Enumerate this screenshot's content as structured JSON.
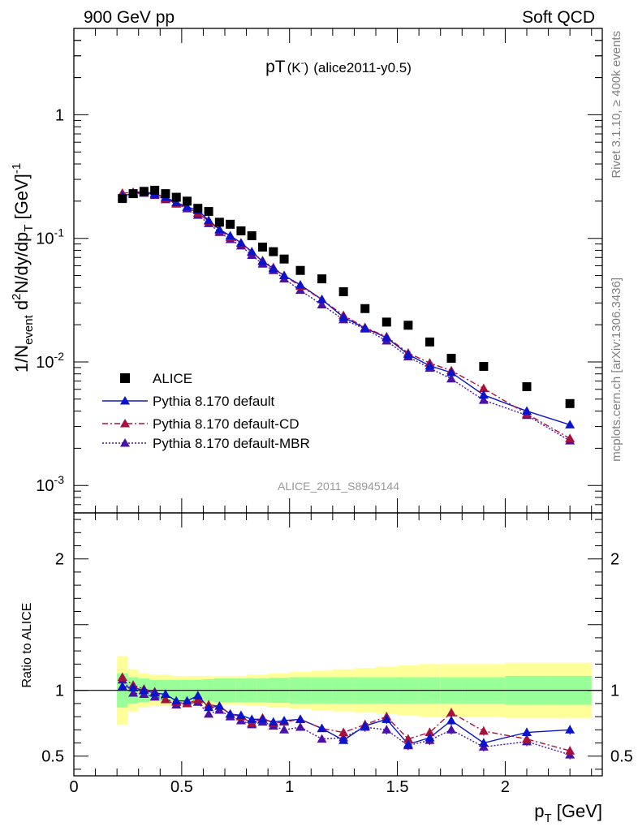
{
  "header": {
    "left": "900 GeV pp",
    "right": "Soft QCD"
  },
  "side_labels": {
    "top": "Rivet 3.1.10, ≥ 400k events",
    "bottom": "mcplots.cern.ch [arXiv:1306.3436]"
  },
  "watermark": "ALICE_2011_S8945144",
  "colors": {
    "data": "#000000",
    "default": "#0a14cc",
    "cd": "#a8103c",
    "mbr": "#4a10a8",
    "band_inner": "#99ff99",
    "band_outer": "#ffff99"
  },
  "chart_data": [
    {
      "type": "scatter",
      "title_main": "pT",
      "title_particle": "(K",
      "title_sup": "-",
      "title_close": ")",
      "title_ref": "(alice2011-y0.5)",
      "ylabel": {
        "a": "1/N",
        "sub1": "event",
        "b": " d",
        "sup1": "2",
        "c": "N/dy/dp",
        "sub2": "T",
        "d": " [GeV]",
        "sup2": "-1"
      },
      "yscale": "log",
      "ylim": [
        0.0006,
        5
      ],
      "xlim": [
        0,
        2.45
      ],
      "yticks": [
        {
          "value": 1,
          "label": "1",
          "sup": ""
        },
        {
          "value": 0.1,
          "label": "10",
          "sup": "-1"
        },
        {
          "value": 0.01,
          "label": "10",
          "sup": "-2"
        },
        {
          "value": 0.001,
          "label": "10",
          "sup": "-3"
        }
      ],
      "legend": {
        "placement": "bottom-left",
        "entries": [
          "ALICE",
          "Pythia 8.170 default",
          "Pythia 8.170 default-CD",
          "Pythia 8.170 default-MBR"
        ]
      },
      "x": [
        0.225,
        0.275,
        0.325,
        0.375,
        0.425,
        0.475,
        0.525,
        0.575,
        0.625,
        0.675,
        0.725,
        0.775,
        0.825,
        0.875,
        0.925,
        0.975,
        1.05,
        1.15,
        1.25,
        1.35,
        1.45,
        1.55,
        1.65,
        1.75,
        1.9,
        2.1,
        2.3
      ],
      "series": [
        {
          "name": "ALICE",
          "values": [
            0.21,
            0.23,
            0.24,
            0.245,
            0.23,
            0.215,
            0.2,
            0.175,
            0.165,
            0.135,
            0.13,
            0.115,
            0.105,
            0.085,
            0.078,
            0.068,
            0.055,
            0.047,
            0.037,
            0.027,
            0.021,
            0.0198,
            0.0145,
            0.0107,
            0.0092,
            0.0063,
            0.0046
          ]
        },
        {
          "name": "Pythia 8.170 default",
          "values": [
            0.22,
            0.232,
            0.235,
            0.228,
            0.215,
            0.195,
            0.18,
            0.168,
            0.14,
            0.118,
            0.105,
            0.092,
            0.078,
            0.065,
            0.057,
            0.05,
            0.042,
            0.032,
            0.023,
            0.0188,
            0.0157,
            0.0115,
            0.0093,
            0.0082,
            0.0054,
            0.004,
            0.0031
          ]
        },
        {
          "name": "Pythia 8.170 default-CD",
          "values": [
            0.232,
            0.236,
            0.238,
            0.232,
            0.21,
            0.192,
            0.178,
            0.16,
            0.138,
            0.116,
            0.102,
            0.091,
            0.077,
            0.066,
            0.058,
            0.05,
            0.041,
            0.032,
            0.0238,
            0.019,
            0.016,
            0.0118,
            0.0098,
            0.0085,
            0.0061,
            0.0038,
            0.0024
          ]
        },
        {
          "name": "Pythia 8.170 default-MBR",
          "values": [
            0.215,
            0.228,
            0.232,
            0.223,
            0.206,
            0.19,
            0.174,
            0.154,
            0.132,
            0.112,
            0.098,
            0.087,
            0.073,
            0.062,
            0.055,
            0.047,
            0.038,
            0.029,
            0.022,
            0.0185,
            0.0148,
            0.011,
            0.0089,
            0.0073,
            0.0049,
            0.0037,
            0.0023
          ]
        }
      ]
    },
    {
      "type": "line",
      "ylabel": "Ratio to ALICE",
      "xlabel": {
        "a": "p",
        "sub": "T",
        "b": " [GeV]"
      },
      "ylim": [
        0.35,
        2.35
      ],
      "xlim": [
        0,
        2.45
      ],
      "yticks": [
        0.5,
        1,
        2
      ],
      "xticks": [
        {
          "value": 0,
          "label": "0"
        },
        {
          "value": 0.5,
          "label": "0.5"
        },
        {
          "value": 1,
          "label": "1"
        },
        {
          "value": 1.5,
          "label": "1.5"
        },
        {
          "value": 2,
          "label": "2"
        }
      ],
      "bins": [
        0.2,
        0.25,
        0.3,
        0.35,
        0.4,
        0.45,
        0.5,
        0.55,
        0.6,
        0.65,
        0.7,
        0.75,
        0.8,
        0.85,
        0.9,
        0.95,
        1.0,
        1.1,
        1.2,
        1.3,
        1.4,
        1.5,
        1.6,
        1.7,
        1.8,
        2.0,
        2.2,
        2.4
      ],
      "band_inner": [
        0.13,
        0.1,
        0.09,
        0.08,
        0.08,
        0.08,
        0.08,
        0.08,
        0.085,
        0.09,
        0.09,
        0.09,
        0.09,
        0.09,
        0.095,
        0.095,
        0.1,
        0.1,
        0.1,
        0.1,
        0.1,
        0.1,
        0.1,
        0.1,
        0.1,
        0.11,
        0.11
      ],
      "band_outer": [
        0.26,
        0.16,
        0.13,
        0.12,
        0.12,
        0.11,
        0.11,
        0.11,
        0.11,
        0.11,
        0.11,
        0.11,
        0.12,
        0.12,
        0.13,
        0.13,
        0.14,
        0.15,
        0.16,
        0.17,
        0.18,
        0.19,
        0.2,
        0.2,
        0.2,
        0.21,
        0.21
      ],
      "x": [
        0.225,
        0.275,
        0.325,
        0.375,
        0.425,
        0.475,
        0.525,
        0.575,
        0.625,
        0.675,
        0.725,
        0.775,
        0.825,
        0.875,
        0.925,
        0.975,
        1.05,
        1.15,
        1.25,
        1.35,
        1.45,
        1.55,
        1.65,
        1.75,
        1.9,
        2.1,
        2.3
      ],
      "series": [
        {
          "name": "Pythia 8.170 default",
          "values": [
            1.03,
            1.02,
            1.0,
            0.98,
            0.97,
            0.92,
            0.92,
            0.96,
            0.87,
            0.88,
            0.82,
            0.81,
            0.78,
            0.78,
            0.76,
            0.77,
            0.78,
            0.71,
            0.62,
            0.73,
            0.78,
            0.59,
            0.64,
            0.77,
            0.6,
            0.68,
            0.7
          ]
        },
        {
          "name": "Pythia 8.170 default-CD",
          "values": [
            1.1,
            1.04,
            1.01,
            0.99,
            0.93,
            0.91,
            0.9,
            0.93,
            0.89,
            0.88,
            0.82,
            0.8,
            0.75,
            0.79,
            0.75,
            0.76,
            0.78,
            0.71,
            0.68,
            0.74,
            0.8,
            0.63,
            0.68,
            0.83,
            0.69,
            0.63,
            0.54
          ]
        },
        {
          "name": "Pythia 8.170 default-MBR",
          "values": [
            1.08,
            0.98,
            0.97,
            0.95,
            0.93,
            0.89,
            0.9,
            0.91,
            0.82,
            0.85,
            0.8,
            0.77,
            0.74,
            0.76,
            0.73,
            0.7,
            0.72,
            0.63,
            0.64,
            0.72,
            0.7,
            0.58,
            0.62,
            0.7,
            0.57,
            0.61,
            0.51
          ]
        }
      ]
    }
  ]
}
